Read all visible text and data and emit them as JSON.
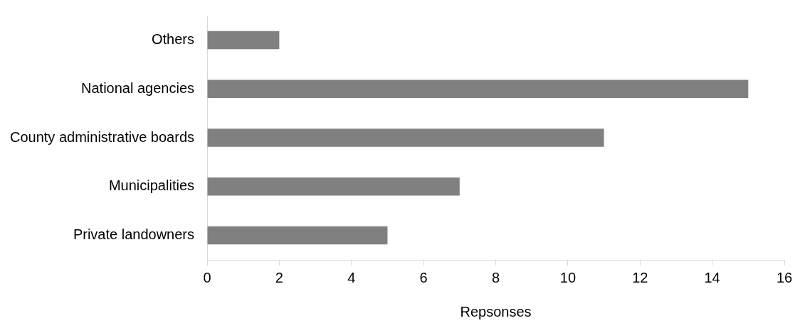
{
  "chart_data": {
    "type": "bar",
    "orientation": "horizontal",
    "xlabel": "Repsonses",
    "categories": [
      "Others",
      "National agencies",
      "County administrative boards",
      "Municipalities",
      "Private landowners"
    ],
    "values": [
      2,
      15,
      11,
      7,
      5
    ],
    "color": "#808080",
    "xlim": [
      0,
      16
    ],
    "xticks": [
      0,
      2,
      4,
      6,
      8,
      10,
      12,
      14,
      16
    ],
    "grid": false,
    "legend": false
  }
}
